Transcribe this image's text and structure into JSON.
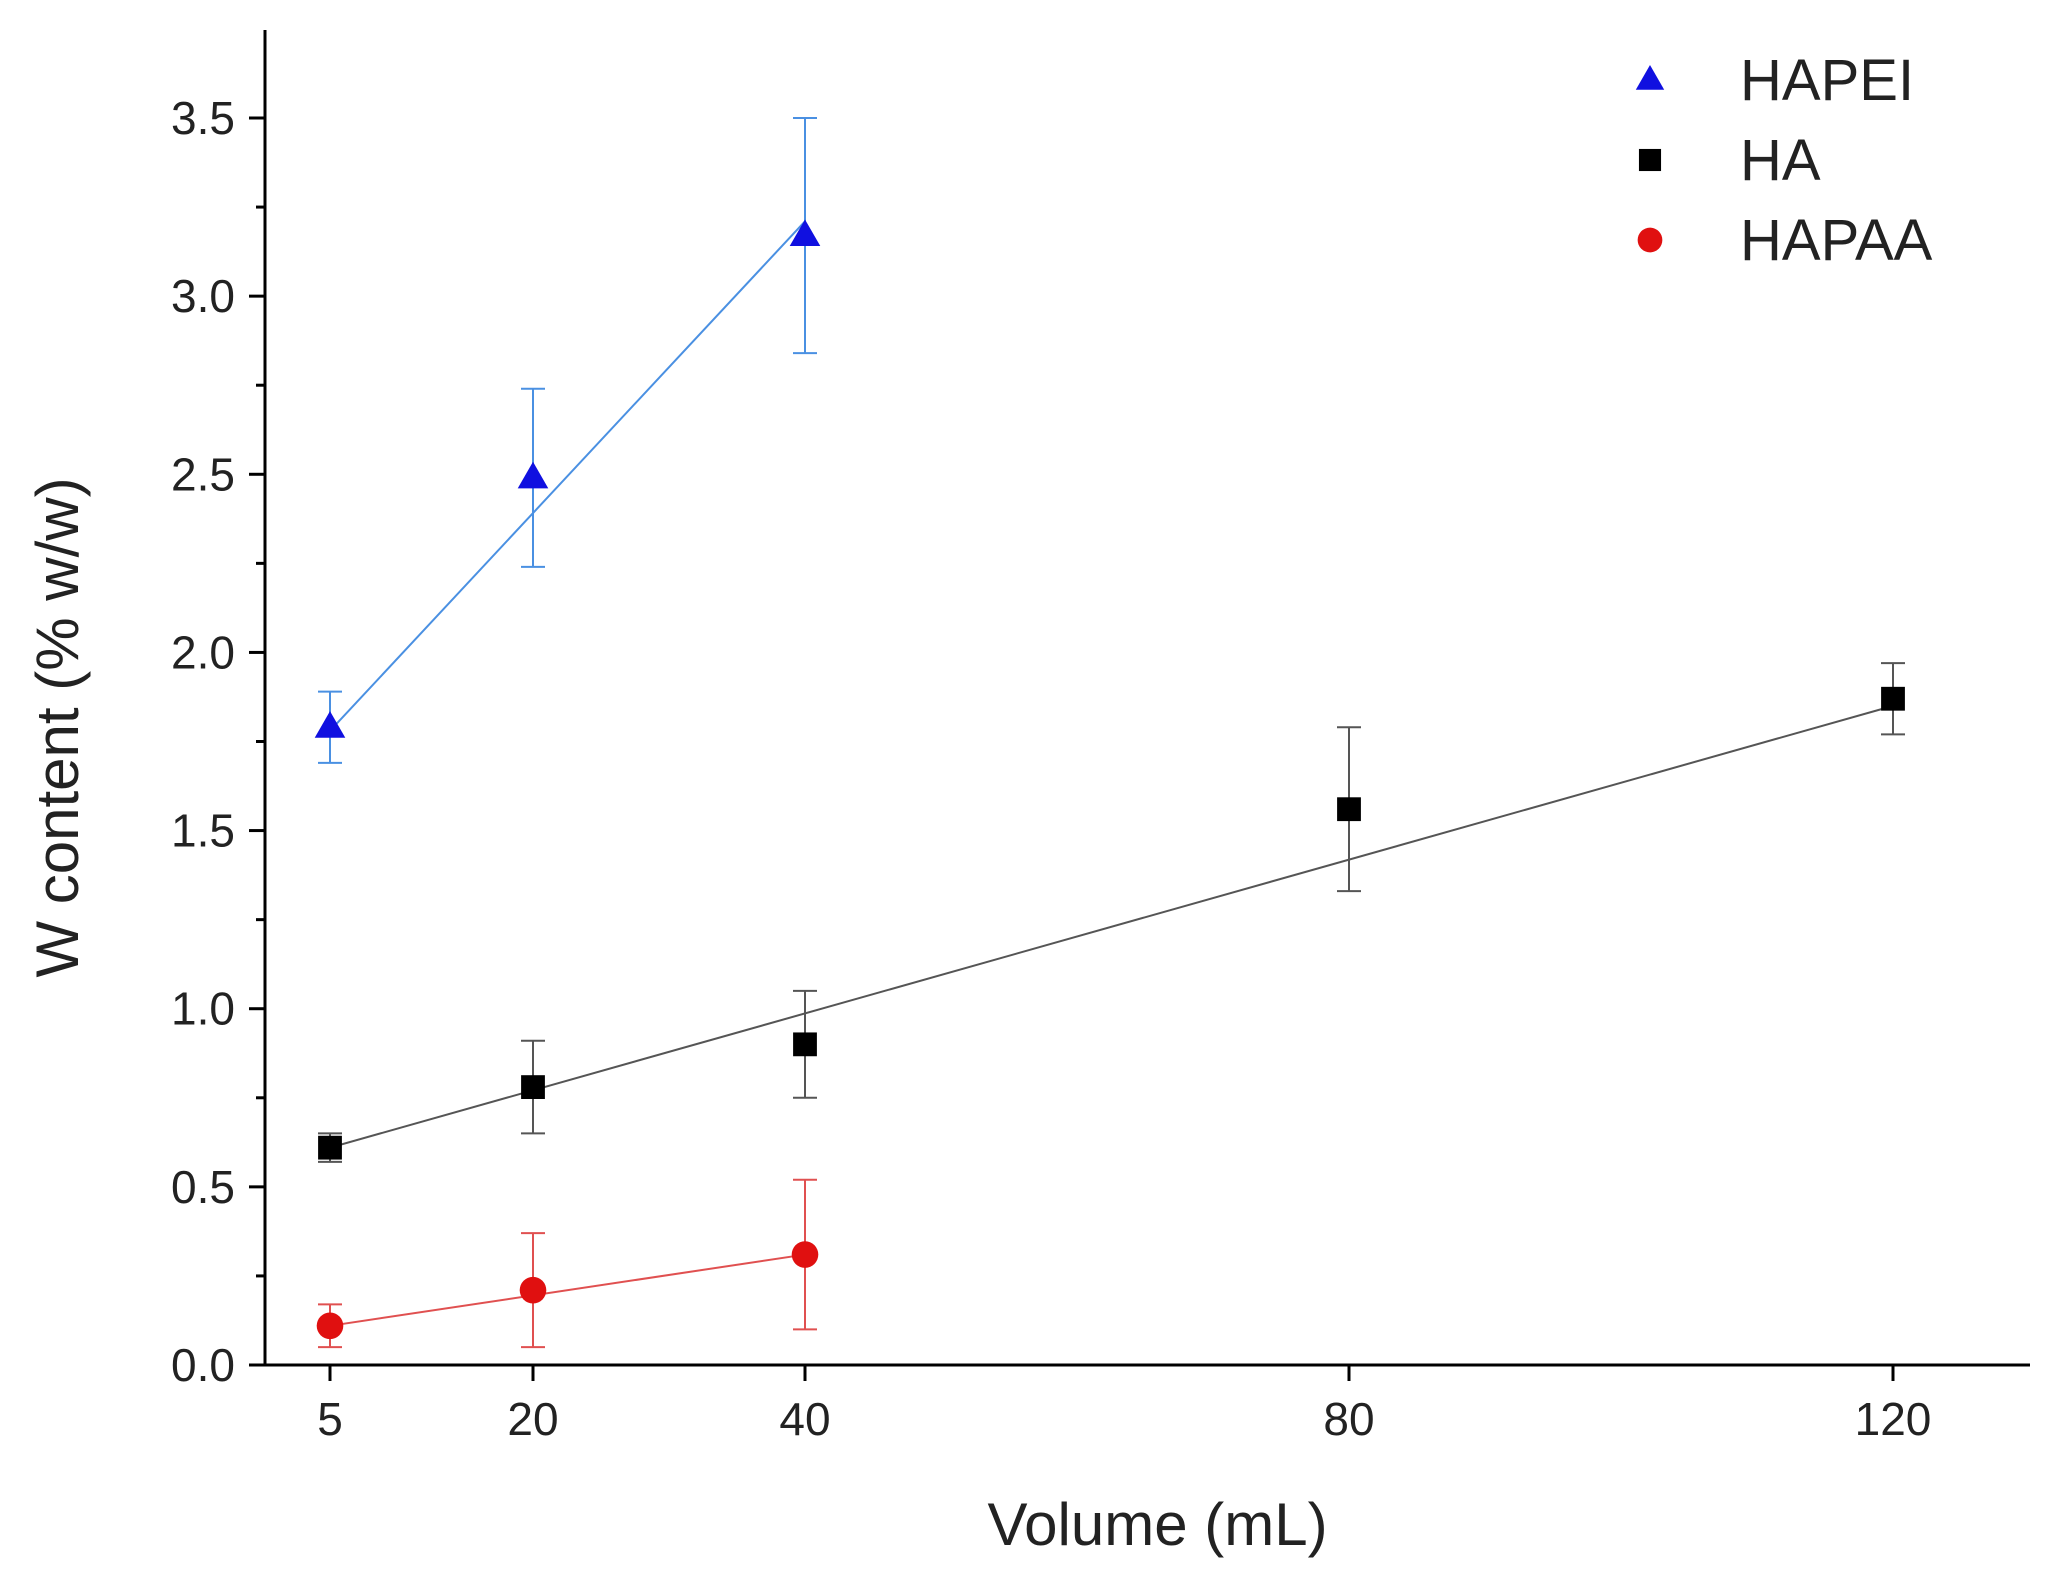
{
  "chart_data": {
    "type": "scatter",
    "title": "",
    "xlabel": "Volume (mL)",
    "ylabel": "W content (% w/w)",
    "x_ticks": [
      5,
      20,
      40,
      80,
      120
    ],
    "x_tick_labels": [
      "5",
      "20",
      "40",
      "80",
      "120"
    ],
    "x_scale": "ordinal-like spacing as shown (5, 20, 40, 80, 120)",
    "xlim": [
      0,
      125
    ],
    "ylim": [
      0.0,
      3.75
    ],
    "y_ticks": [
      0.0,
      0.5,
      1.0,
      1.5,
      2.0,
      2.5,
      3.0,
      3.5
    ],
    "y_tick_labels": [
      "0.0",
      "0.5",
      "1.0",
      "1.5",
      "2.0",
      "2.5",
      "3.0",
      "3.5"
    ],
    "grid": false,
    "legend_position": "top-right",
    "series": [
      {
        "name": "HAPEI",
        "marker": "triangle",
        "color": "#1010e0",
        "line_color": "#4a90e2",
        "x": [
          5,
          20,
          40
        ],
        "y": [
          1.79,
          2.49,
          3.17
        ],
        "error": [
          0.1,
          0.25,
          0.33
        ],
        "fit": [
          [
            5,
            1.78
          ],
          [
            40,
            3.21
          ]
        ]
      },
      {
        "name": "HA",
        "marker": "square",
        "color": "#000000",
        "line_color": "#555555",
        "x": [
          5,
          20,
          40,
          80,
          120
        ],
        "y": [
          0.61,
          0.78,
          0.9,
          1.56,
          1.87
        ],
        "error": [
          0.04,
          0.13,
          0.15,
          0.23,
          0.1
        ],
        "fit": [
          [
            5,
            0.61
          ],
          [
            120,
            1.85
          ]
        ]
      },
      {
        "name": "HAPAA",
        "marker": "circle",
        "color": "#e01010",
        "line_color": "#e05050",
        "x": [
          5,
          20,
          40
        ],
        "y": [
          0.11,
          0.21,
          0.31
        ],
        "error": [
          0.06,
          0.16,
          0.21
        ],
        "fit": [
          [
            5,
            0.11
          ],
          [
            40,
            0.31
          ]
        ]
      }
    ]
  }
}
